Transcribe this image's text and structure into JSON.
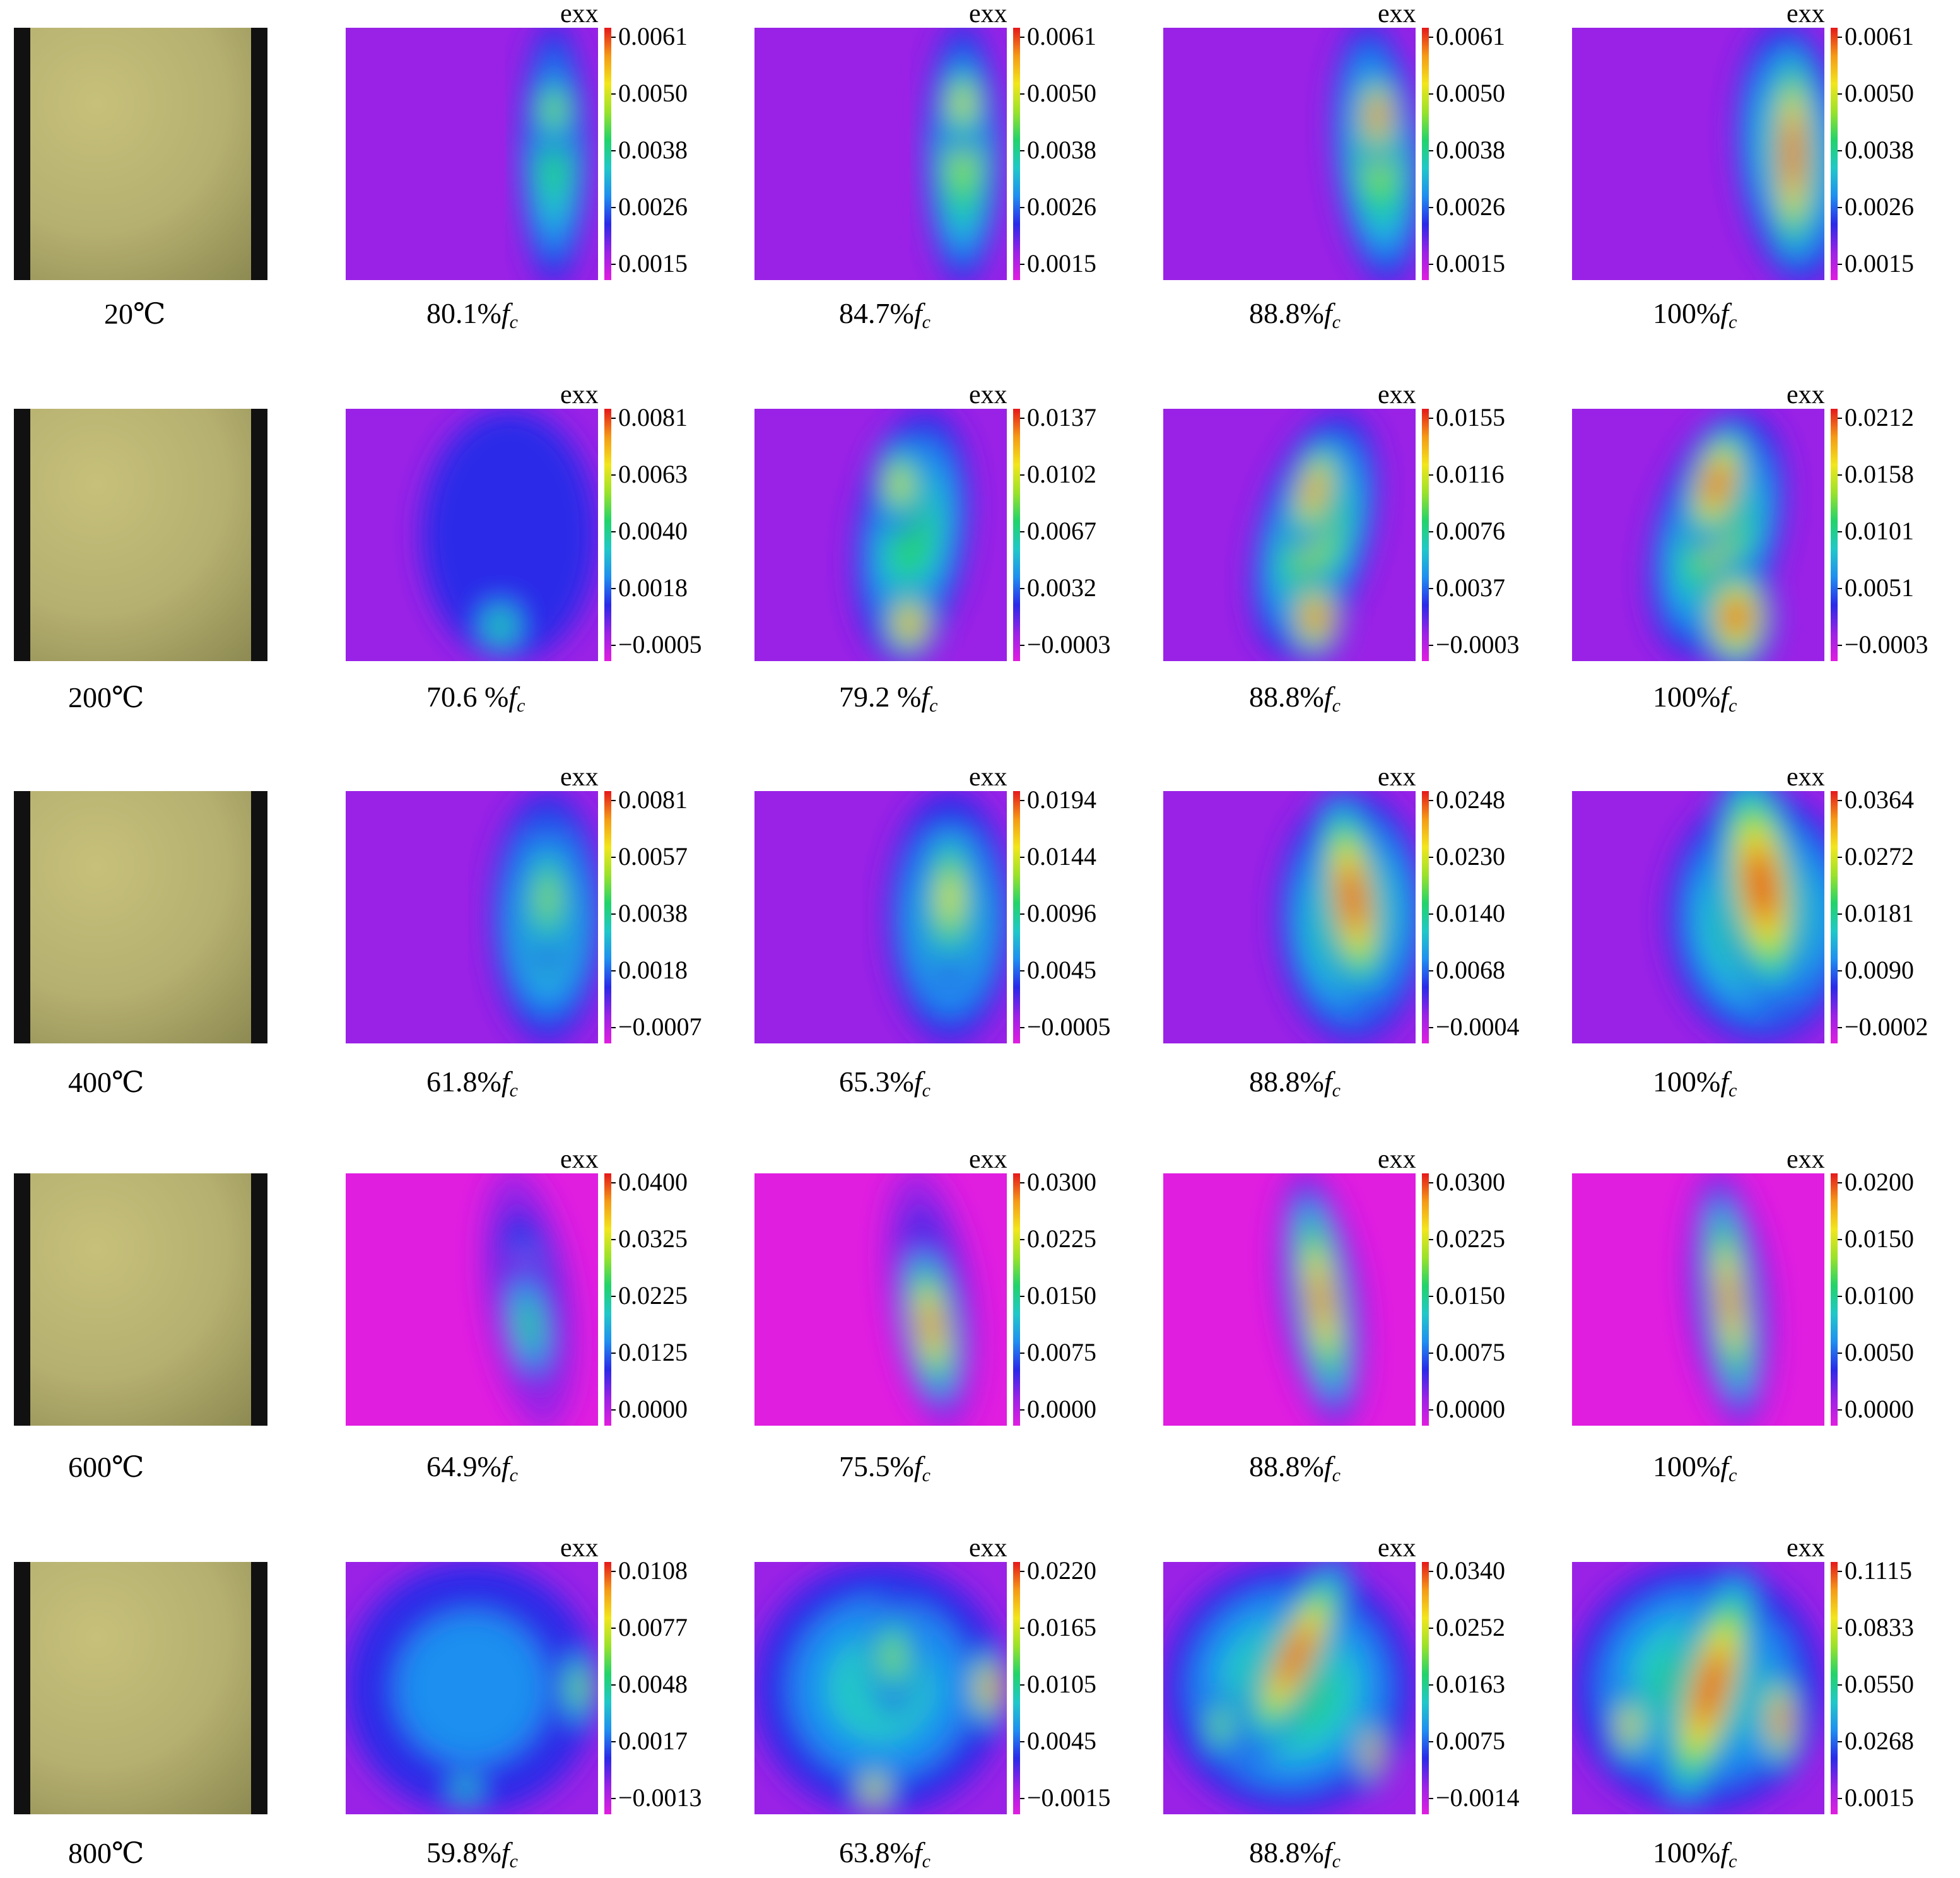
{
  "field_label": "exx",
  "rows": [
    {
      "temperature": "20℃",
      "panels": [
        {
          "load": "80.1%",
          "ticks": [
            "0.0061",
            "0.0050",
            "0.0038",
            "0.0026",
            "0.0015"
          ]
        },
        {
          "load": "84.7%",
          "ticks": [
            "0.0061",
            "0.0050",
            "0.0038",
            "0.0026",
            "0.0015"
          ]
        },
        {
          "load": "88.8%",
          "ticks": [
            "0.0061",
            "0.0050",
            "0.0038",
            "0.0026",
            "0.0015"
          ]
        },
        {
          "load": "100%",
          "ticks": [
            "0.0061",
            "0.0050",
            "0.0038",
            "0.0026",
            "0.0015"
          ]
        }
      ]
    },
    {
      "temperature": "200℃",
      "panels": [
        {
          "load": "70.6 %",
          "ticks": [
            "0.0081",
            "0.0063",
            "0.0040",
            "0.0018",
            "−0.0005"
          ]
        },
        {
          "load": "79.2 %",
          "ticks": [
            "0.0137",
            "0.0102",
            "0.0067",
            "0.0032",
            "−0.0003"
          ]
        },
        {
          "load": "88.8%",
          "ticks": [
            "0.0155",
            "0.0116",
            "0.0076",
            "0.0037",
            "−0.0003"
          ]
        },
        {
          "load": "100%",
          "ticks": [
            "0.0212",
            "0.0158",
            "0.0101",
            "0.0051",
            "−0.0003"
          ]
        }
      ]
    },
    {
      "temperature": "400℃",
      "panels": [
        {
          "load": "61.8%",
          "ticks": [
            "0.0081",
            "0.0057",
            "0.0038",
            "0.0018",
            "−0.0007"
          ]
        },
        {
          "load": "65.3%",
          "ticks": [
            "0.0194",
            "0.0144",
            "0.0096",
            "0.0045",
            "−0.0005"
          ]
        },
        {
          "load": "88.8%",
          "ticks": [
            "0.0248",
            "0.0230",
            "0.0140",
            "0.0068",
            "−0.0004"
          ]
        },
        {
          "load": "100%",
          "ticks": [
            "0.0364",
            "0.0272",
            "0.0181",
            "0.0090",
            "−0.0002"
          ]
        }
      ]
    },
    {
      "temperature": "600℃",
      "panels": [
        {
          "load": "64.9%",
          "ticks": [
            "0.0400",
            "0.0325",
            "0.0225",
            "0.0125",
            "0.0000"
          ]
        },
        {
          "load": "75.5%",
          "ticks": [
            "0.0300",
            "0.0225",
            "0.0150",
            "0.0075",
            "0.0000"
          ]
        },
        {
          "load": "88.8%",
          "ticks": [
            "0.0300",
            "0.0225",
            "0.0150",
            "0.0075",
            "0.0000"
          ]
        },
        {
          "load": "100%",
          "ticks": [
            "0.0200",
            "0.0150",
            "0.0100",
            "0.0050",
            "0.0000"
          ]
        }
      ]
    },
    {
      "temperature": "800℃",
      "panels": [
        {
          "load": "59.8%",
          "ticks": [
            "0.0108",
            "0.0077",
            "0.0048",
            "0.0017",
            "−0.0013"
          ]
        },
        {
          "load": "63.8%",
          "ticks": [
            "0.0220",
            "0.0165",
            "0.0105",
            "0.0045",
            "−0.0015"
          ]
        },
        {
          "load": "88.8%",
          "ticks": [
            "0.0340",
            "0.0252",
            "0.0163",
            "0.0075",
            "−0.0014"
          ]
        },
        {
          "load": "100%",
          "ticks": [
            "0.1115",
            "0.0833",
            "0.0550",
            "0.0268",
            "0.0015"
          ]
        }
      ]
    }
  ],
  "load_symbol": "f",
  "load_subscript": "c",
  "colormap": [
    "#e01ee0",
    "#9a22e6",
    "#2a2ae8",
    "#1f8ff0",
    "#20c8c8",
    "#22d36a",
    "#9be22a",
    "#f2e61c",
    "#f59a16",
    "#e5181b"
  ],
  "specimen_color": "#b5b070"
}
